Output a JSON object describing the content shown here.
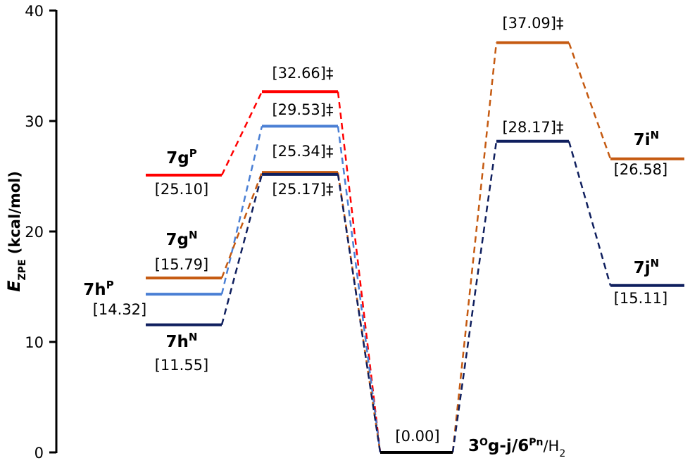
{
  "chart_data": {
    "type": "energy-profile",
    "y_label_parts": [
      {
        "text": "E",
        "style": "italic"
      },
      {
        "text": "ZPE",
        "style": "sub"
      },
      {
        "text": " (kcal/mol)",
        "style": "normal"
      }
    ],
    "ylim": [
      0,
      40
    ],
    "yticks": [
      0,
      10,
      20,
      30,
      40
    ],
    "reference": {
      "value": 0,
      "value_label": "[0.00]",
      "color": "#000000",
      "label_parts": [
        {
          "text": "3",
          "style": "bold"
        },
        {
          "text": "O",
          "style": "sup"
        },
        {
          "text": "g-j/6",
          "style": "bold"
        },
        {
          "text": "Pn",
          "style": "sup"
        },
        {
          "text": "/H",
          "style": "normal"
        },
        {
          "text": "2",
          "style": "sub"
        }
      ]
    },
    "series": [
      {
        "name": "7g",
        "name_sup": "P",
        "color": "#ff0000",
        "values": [
          25.1,
          32.66,
          null,
          null,
          null
        ],
        "value_labels": [
          "[25.10]",
          "[32.66]‡",
          null,
          null,
          null
        ]
      },
      {
        "name": "7h",
        "name_sup": "P",
        "color": "#4a7fd4",
        "values": [
          14.32,
          29.53,
          null,
          null,
          null
        ],
        "value_labels": [
          "[14.32]",
          "[29.53]‡",
          null,
          null,
          null
        ]
      },
      {
        "name": "7g",
        "name_sup": "N",
        "color": "#c55a11",
        "values": [
          15.79,
          25.34,
          null,
          null,
          null
        ],
        "value_labels": [
          "[15.79]",
          "[25.34]‡",
          null,
          null,
          null
        ]
      },
      {
        "name": "7h",
        "name_sup": "N",
        "color": "#0f1f5e",
        "values": [
          11.55,
          25.17,
          null,
          null,
          null
        ],
        "value_labels": [
          "[11.55]",
          "[25.17]‡",
          null,
          null,
          null
        ]
      },
      {
        "name": "7i",
        "name_sup": "N",
        "color": "#c55a11",
        "values": [
          null,
          null,
          null,
          37.09,
          26.58
        ],
        "value_labels": [
          null,
          null,
          null,
          "[37.09]‡",
          "[26.58]"
        ]
      },
      {
        "name": "7j",
        "name_sup": "N",
        "color": "#0f1f5e",
        "values": [
          null,
          null,
          null,
          28.17,
          15.11
        ],
        "value_labels": [
          null,
          null,
          null,
          "[28.17]‡",
          "[15.11]"
        ]
      }
    ]
  }
}
